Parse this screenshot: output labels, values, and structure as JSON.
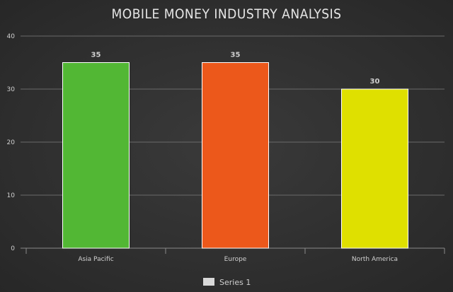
{
  "chart_data": {
    "type": "bar",
    "title": "MOBILE MONEY INDUSTRY ANALYSIS",
    "categories": [
      "Asia Pacific",
      "Europe",
      "North America"
    ],
    "series": [
      {
        "name": "Series 1",
        "values": [
          35,
          35,
          30
        ],
        "colors": [
          "#52b734",
          "#ec581b",
          "#dfe000"
        ]
      }
    ],
    "ylim": [
      0,
      40
    ],
    "yticks": [
      0,
      10,
      20,
      30,
      40
    ],
    "grid": true,
    "legend": "bottom-center",
    "legend_swatch_color": "#d9d9d9",
    "bar_border_color": "#ffffff"
  }
}
